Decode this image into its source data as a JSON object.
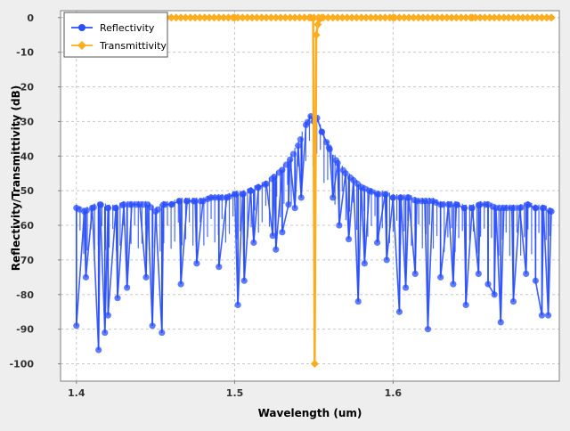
{
  "chart_data": {
    "type": "line",
    "title": "",
    "xlabel": "Wavelength (um)",
    "ylabel": "Reflectivity/Transmittivity (dB)",
    "xlim": [
      1.39,
      1.705
    ],
    "ylim": [
      -105,
      2
    ],
    "xticks": [
      1.4,
      1.5,
      1.6
    ],
    "xtick_labels": [
      "1.4",
      "1.5",
      "1.6"
    ],
    "yticks": [
      0,
      -10,
      -20,
      -30,
      -40,
      -50,
      -60,
      -70,
      -80,
      -90,
      -100
    ],
    "ytick_labels": [
      "0",
      "-10",
      "-20",
      "-30",
      "-40",
      "-50",
      "-60",
      "-70",
      "-80",
      "-90",
      "-100"
    ],
    "grid": true,
    "legend_position": "top-left",
    "series": [
      {
        "name": "Reflectivity",
        "color": "#2a4fff",
        "marker": "circle",
        "note_x_range": [
          1.4,
          1.7
        ],
        "x": [
          1.4,
          1.405,
          1.41,
          1.415,
          1.42,
          1.425,
          1.43,
          1.435,
          1.44,
          1.445,
          1.45,
          1.455,
          1.46,
          1.465,
          1.47,
          1.475,
          1.48,
          1.485,
          1.49,
          1.495,
          1.5,
          1.505,
          1.51,
          1.515,
          1.52,
          1.525,
          1.53,
          1.535,
          1.54,
          1.545,
          1.548,
          1.55,
          1.552,
          1.555,
          1.558,
          1.56,
          1.565,
          1.57,
          1.575,
          1.58,
          1.585,
          1.59,
          1.595,
          1.6,
          1.605,
          1.61,
          1.615,
          1.62,
          1.625,
          1.63,
          1.635,
          1.64,
          1.645,
          1.65,
          1.655,
          1.66,
          1.665,
          1.67,
          1.675,
          1.68,
          1.685,
          1.69,
          1.695,
          1.7
        ],
        "y": [
          -55,
          -56,
          -55,
          -54,
          -55,
          -55,
          -54,
          -54,
          -54,
          -54,
          -56,
          -54,
          -54,
          -53,
          -53,
          -53,
          -53,
          -52,
          -52,
          -52,
          -51,
          -51,
          -50,
          -49,
          -48,
          -46,
          -44,
          -41,
          -37,
          -31,
          -28.5,
          -30,
          -29,
          -33,
          -36,
          -38,
          -42,
          -45,
          -47,
          -49,
          -50,
          -51,
          -51,
          -52,
          -52,
          -52,
          -53,
          -53,
          -53,
          -54,
          -54,
          -54,
          -55,
          -55,
          -54,
          -54,
          -55,
          -55,
          -55,
          -55,
          -54,
          -55,
          -55,
          -56
        ],
        "dips": [
          [
            1.4,
            -89
          ],
          [
            1.406,
            -75
          ],
          [
            1.414,
            -96
          ],
          [
            1.418,
            -91
          ],
          [
            1.42,
            -86
          ],
          [
            1.426,
            -81
          ],
          [
            1.432,
            -78
          ],
          [
            1.444,
            -75
          ],
          [
            1.448,
            -89
          ],
          [
            1.454,
            -91
          ],
          [
            1.466,
            -77
          ],
          [
            1.476,
            -71
          ],
          [
            1.49,
            -72
          ],
          [
            1.502,
            -83
          ],
          [
            1.506,
            -76
          ],
          [
            1.512,
            -65
          ],
          [
            1.524,
            -63
          ],
          [
            1.526,
            -67
          ],
          [
            1.53,
            -62
          ],
          [
            1.534,
            -54
          ],
          [
            1.538,
            -55
          ],
          [
            1.542,
            -52
          ],
          [
            1.562,
            -52
          ],
          [
            1.566,
            -60
          ],
          [
            1.572,
            -64
          ],
          [
            1.578,
            -82
          ],
          [
            1.582,
            -71
          ],
          [
            1.59,
            -65
          ],
          [
            1.596,
            -70
          ],
          [
            1.604,
            -85
          ],
          [
            1.608,
            -78
          ],
          [
            1.614,
            -74
          ],
          [
            1.622,
            -90
          ],
          [
            1.63,
            -75
          ],
          [
            1.638,
            -77
          ],
          [
            1.646,
            -83
          ],
          [
            1.654,
            -74
          ],
          [
            1.66,
            -77
          ],
          [
            1.664,
            -80
          ],
          [
            1.668,
            -88
          ],
          [
            1.676,
            -82
          ],
          [
            1.684,
            -74
          ],
          [
            1.69,
            -76
          ],
          [
            1.694,
            -86
          ],
          [
            1.698,
            -86
          ]
        ]
      },
      {
        "name": "Transmittivity",
        "color": "#ffad1f",
        "marker": "diamond",
        "x": [
          1.4,
          1.45,
          1.5,
          1.548,
          1.5495,
          1.5505,
          1.5515,
          1.5525,
          1.5535,
          1.555,
          1.6,
          1.65,
          1.7
        ],
        "y": [
          0,
          0,
          0,
          0,
          -0.3,
          -100,
          -5,
          -2,
          -0.5,
          0,
          0,
          0,
          0
        ]
      }
    ]
  }
}
